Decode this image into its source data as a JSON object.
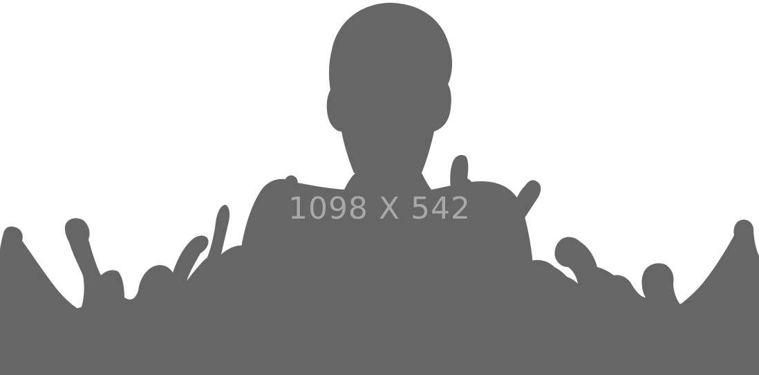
{
  "placeholder": {
    "label": "1098 X 542",
    "silhouette_color": "#666666",
    "label_color": "#a8a8a8",
    "background_color": "#ffffff"
  }
}
